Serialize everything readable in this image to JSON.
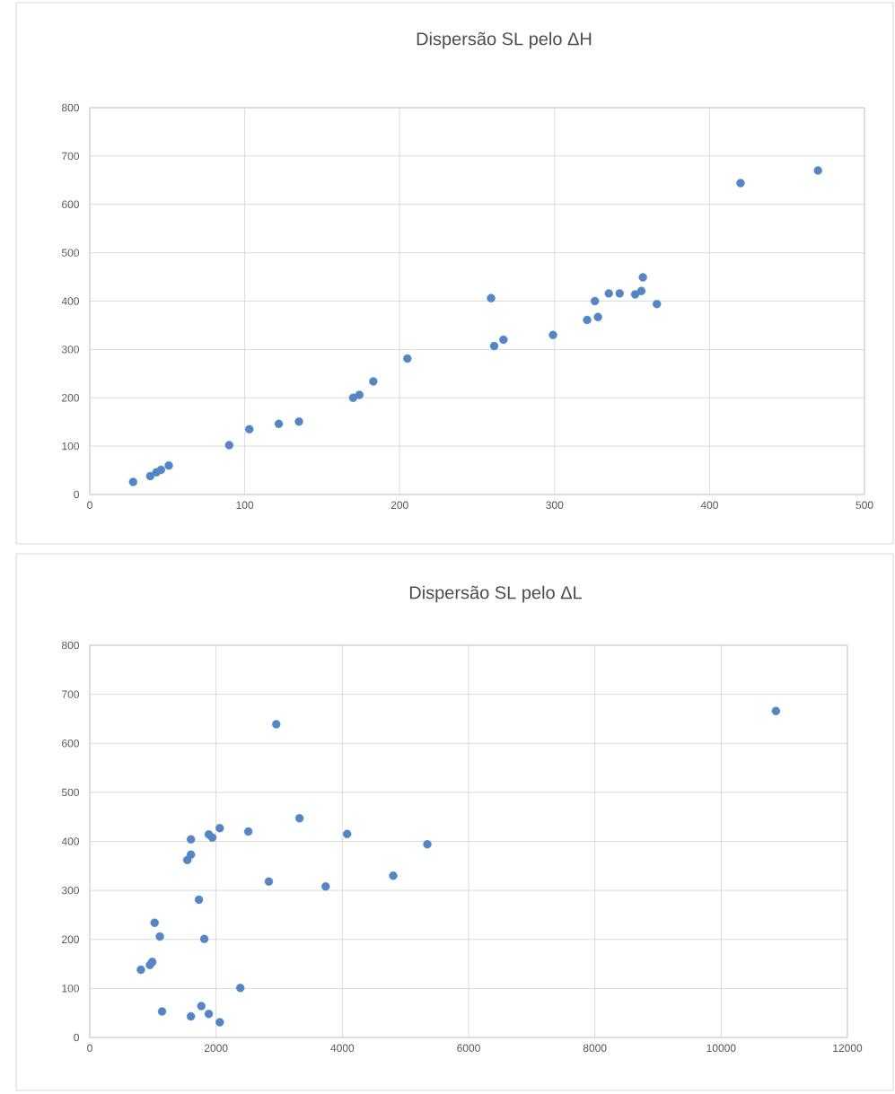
{
  "chart_data": [
    {
      "type": "scatter",
      "title": "Dispersão SL pelo ΔH",
      "color": "#5585c5",
      "marker": "circle",
      "grid": true,
      "x": [
        28,
        39,
        43,
        46,
        51,
        90,
        103,
        122,
        135,
        170,
        174,
        183,
        205,
        259,
        261,
        267,
        299,
        321,
        328,
        326,
        335,
        342,
        352,
        356,
        357,
        366,
        420,
        470
      ],
      "values": [
        26,
        38,
        46,
        51,
        60,
        102,
        135,
        146,
        151,
        200,
        206,
        234,
        281,
        406,
        307,
        320,
        330,
        361,
        367,
        400,
        416,
        416,
        414,
        421,
        449,
        394,
        644,
        670
      ],
      "xlim": [
        0,
        500
      ],
      "ylim": [
        0,
        800
      ],
      "xticks": [
        0,
        100,
        200,
        300,
        400,
        500
      ],
      "yticks": [
        0,
        100,
        200,
        300,
        400,
        500,
        600,
        700,
        800
      ]
    },
    {
      "type": "scatter",
      "title": "Dispersão SL pelo ΔL",
      "color": "#5585c5",
      "marker": "circle",
      "grid": true,
      "x": [
        2954,
        3322,
        2511,
        4076,
        2059,
        1885,
        1941,
        1602,
        1602,
        1545,
        5347,
        2836,
        3736,
        4806,
        1729,
        1027,
        1110,
        1814,
        989,
        952,
        810,
        2384,
        1145,
        1602,
        1767,
        1885,
        2059,
        10868
      ],
      "values": [
        639,
        447,
        420,
        415,
        427,
        414,
        408,
        404,
        373,
        362,
        394,
        318,
        308,
        330,
        281,
        234,
        206,
        201,
        154,
        148,
        138,
        101,
        53,
        43,
        64,
        48,
        31,
        666
      ],
      "xlim": [
        0,
        12000
      ],
      "ylim": [
        0,
        800
      ],
      "xticks": [
        0,
        2000,
        4000,
        6000,
        8000,
        10000,
        12000
      ],
      "yticks": [
        0,
        100,
        200,
        300,
        400,
        500,
        600,
        700,
        800
      ]
    }
  ]
}
